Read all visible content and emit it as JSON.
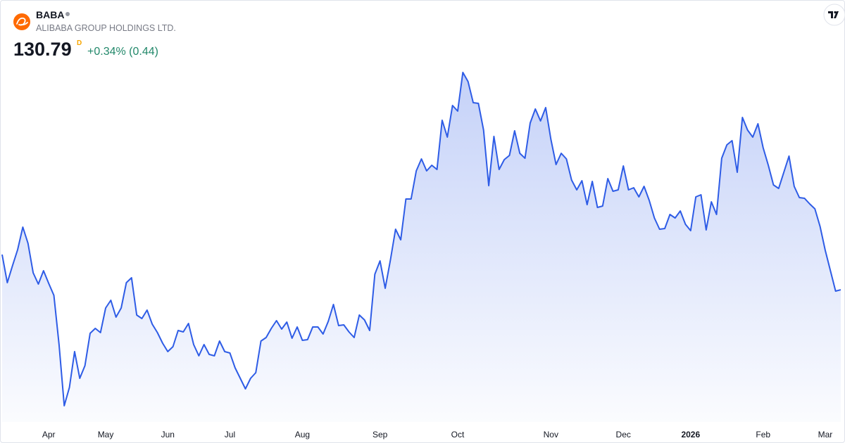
{
  "header": {
    "symbol": "BABA",
    "name": "ALIBABA GROUP HOLDINGS LTD.",
    "price": 130.79,
    "interval": "D",
    "change": "+0.34% (0.44)"
  },
  "chart_data": {
    "type": "area",
    "color": "#2e5ce6",
    "ylim": [
      90,
      200
    ],
    "values": [
      140.8,
      132.8,
      137.6,
      142.2,
      148.6,
      144.0,
      135.6,
      132.4,
      136.2,
      132.6,
      129.2,
      115.2,
      97.8,
      103.0,
      113.2,
      105.6,
      109.2,
      118.4,
      119.8,
      118.6,
      125.6,
      127.8,
      123.0,
      125.6,
      132.8,
      134.2,
      123.6,
      122.6,
      125.0,
      121.0,
      118.6,
      115.6,
      113.2,
      114.6,
      119.2,
      118.8,
      121.2,
      115.2,
      112.0,
      115.2,
      112.4,
      112.0,
      116.2,
      113.2,
      112.8,
      108.6,
      105.6,
      102.6,
      105.6,
      107.2,
      116.2,
      117.2,
      119.8,
      122.0,
      119.6,
      121.6,
      117.0,
      120.2,
      116.4,
      116.6,
      120.2,
      120.2,
      118.2,
      121.8,
      126.6,
      120.6,
      120.8,
      118.8,
      117.2,
      123.6,
      122.2,
      119.2,
      135.2,
      139.0,
      131.2,
      139.2,
      148.0,
      145.0,
      156.6,
      156.6,
      164.6,
      168.0,
      164.6,
      166.2,
      165.0,
      179.0,
      174.2,
      183.2,
      181.6,
      192.6,
      190.0,
      184.0,
      183.8,
      176.2,
      160.4,
      174.4,
      165.0,
      167.8,
      169.0,
      176.0,
      169.6,
      168.2,
      178.2,
      182.2,
      178.8,
      182.6,
      173.6,
      166.4,
      169.6,
      168.0,
      162.0,
      159.2,
      161.8,
      155.0,
      161.6,
      154.2,
      154.6,
      162.4,
      158.8,
      159.2,
      166.0,
      159.2,
      159.8,
      157.2,
      160.2,
      156.2,
      151.2,
      148.0,
      148.2,
      152.2,
      151.2,
      153.2,
      149.4,
      147.6,
      157.2,
      157.8,
      147.8,
      155.8,
      152.2,
      168.2,
      172.0,
      173.2,
      164.2,
      179.8,
      176.2,
      174.2,
      178.0,
      171.2,
      166.2,
      160.6,
      159.6,
      164.2,
      168.8,
      160.2,
      157.0,
      156.8,
      155.2,
      153.8,
      148.8,
      142.0,
      136.2,
      130.4,
      130.79
    ],
    "xticks": [
      {
        "value": 9,
        "label": "Apr"
      },
      {
        "value": 20,
        "label": "May"
      },
      {
        "value": 32,
        "label": "Jun"
      },
      {
        "value": 44,
        "label": "Jul"
      },
      {
        "value": 58,
        "label": "Aug"
      },
      {
        "value": 73,
        "label": "Sep"
      },
      {
        "value": 88,
        "label": "Oct"
      },
      {
        "value": 106,
        "label": "Nov"
      },
      {
        "value": 120,
        "label": "Dec"
      },
      {
        "value": 133,
        "label": "2026"
      },
      {
        "value": 147,
        "label": "Feb"
      },
      {
        "value": 159,
        "label": "Mar"
      }
    ]
  }
}
